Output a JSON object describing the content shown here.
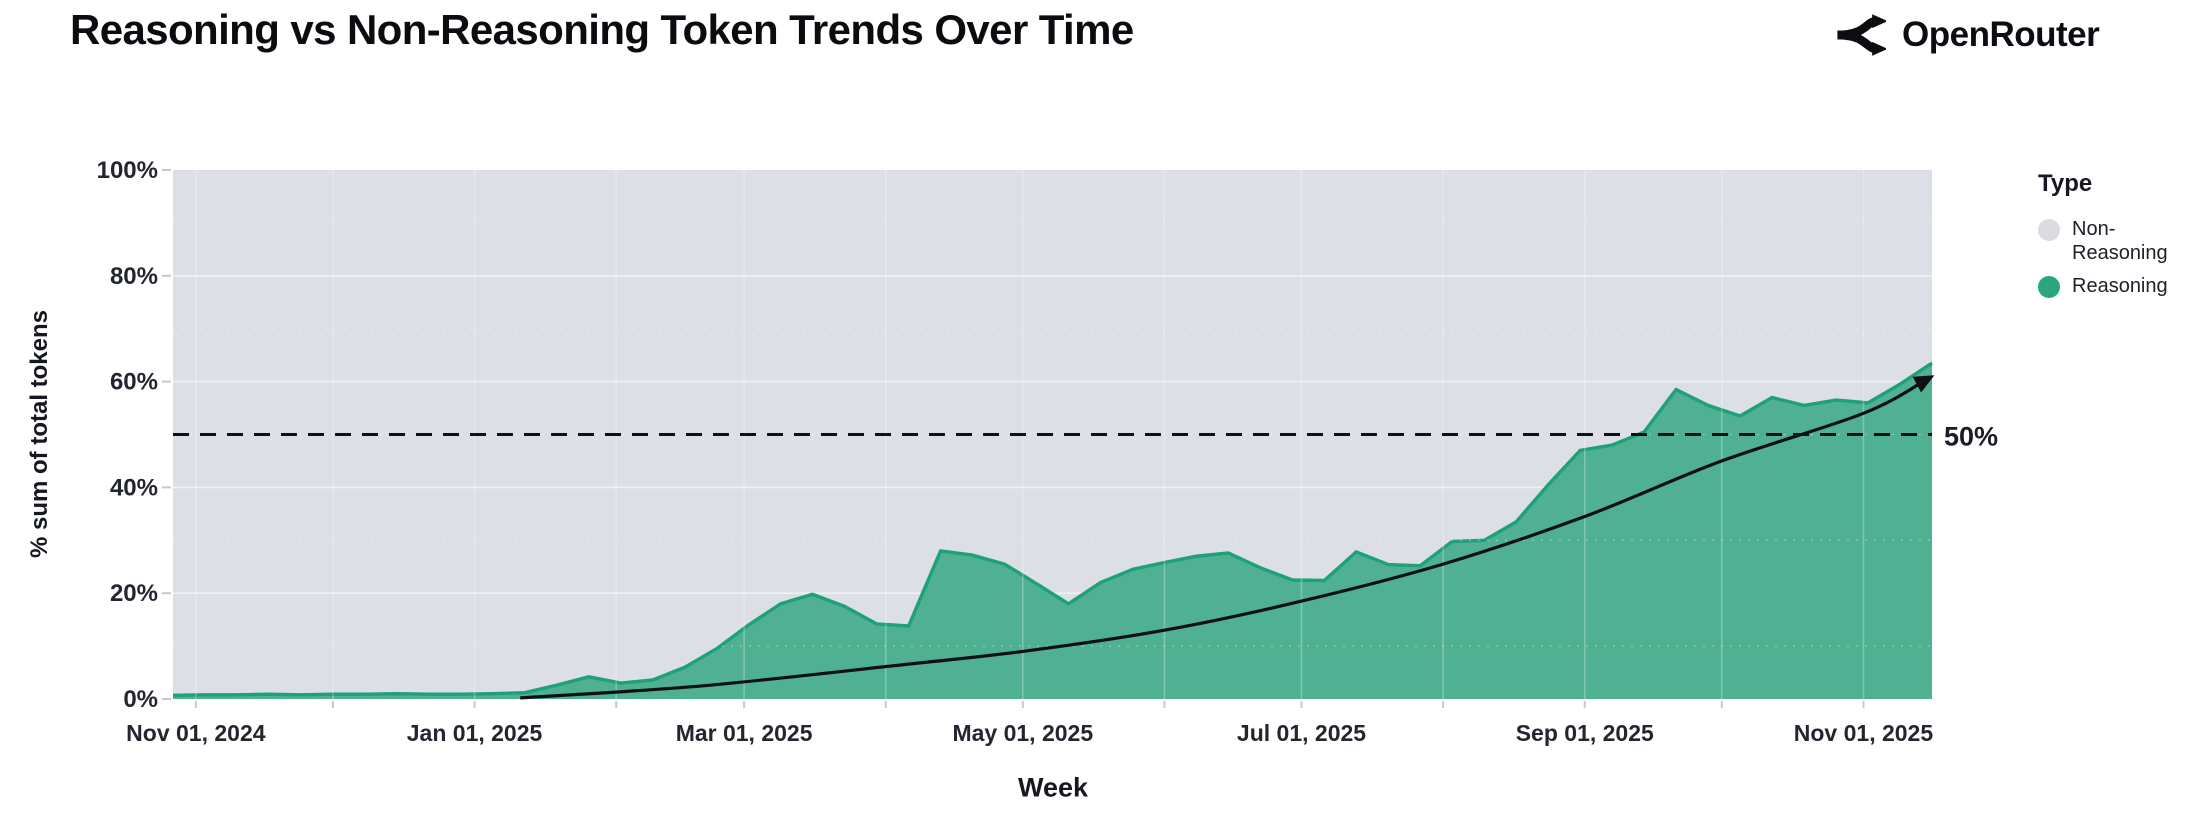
{
  "header": {
    "title": "Reasoning vs Non-Reasoning Token Trends Over Time",
    "brand": "OpenRouter"
  },
  "legend": {
    "title": "Type",
    "items": [
      {
        "label": "Non-Reasoning",
        "color": "#d9dbdf"
      },
      {
        "label": "Reasoning",
        "color": "#2aa57e"
      }
    ]
  },
  "chart_data": {
    "type": "area",
    "stacking": "percent",
    "title": "Reasoning vs Non-Reasoning Token Trends Over Time",
    "xlabel": "Week",
    "ylabel": "% sum of total tokens",
    "ylim": [
      0,
      100
    ],
    "grid": true,
    "legend_position": "right",
    "x_domain": [
      "2024-10-27",
      "2025-11-16"
    ],
    "y_ticks": [
      {
        "value": 0,
        "label": "0%"
      },
      {
        "value": 20,
        "label": "20%"
      },
      {
        "value": 40,
        "label": "40%"
      },
      {
        "value": 60,
        "label": "60%"
      },
      {
        "value": 80,
        "label": "80%"
      },
      {
        "value": 100,
        "label": "100%"
      }
    ],
    "x_ticks": [
      {
        "date": "2024-11-01",
        "label": "Nov 01, 2024"
      },
      {
        "date": "2024-12-01"
      },
      {
        "date": "2025-01-01",
        "label": "Jan 01, 2025"
      },
      {
        "date": "2025-02-01"
      },
      {
        "date": "2025-03-01",
        "label": "Mar 01, 2025"
      },
      {
        "date": "2025-04-01"
      },
      {
        "date": "2025-05-01",
        "label": "May 01, 2025"
      },
      {
        "date": "2025-06-01"
      },
      {
        "date": "2025-07-01",
        "label": "Jul 01, 2025"
      },
      {
        "date": "2025-08-01"
      },
      {
        "date": "2025-09-01",
        "label": "Sep 01, 2025"
      },
      {
        "date": "2025-10-01"
      },
      {
        "date": "2025-11-01",
        "label": "Nov 01, 2025"
      }
    ],
    "series": [
      {
        "name": "Reasoning",
        "format": [
          "week_start",
          "reasoning_pct_of_total_tokens"
        ],
        "weeks": [
          [
            "2024-10-27",
            0.7
          ],
          [
            "2024-11-03",
            0.8
          ],
          [
            "2024-11-10",
            0.8
          ],
          [
            "2024-11-17",
            0.9
          ],
          [
            "2024-11-24",
            0.8
          ],
          [
            "2024-12-01",
            0.9
          ],
          [
            "2024-12-08",
            0.9
          ],
          [
            "2024-12-15",
            1.0
          ],
          [
            "2024-12-22",
            0.9
          ],
          [
            "2024-12-29",
            0.9
          ],
          [
            "2025-01-05",
            1.0
          ],
          [
            "2025-01-12",
            1.2
          ],
          [
            "2025-01-19",
            2.6
          ],
          [
            "2025-01-26",
            4.2
          ],
          [
            "2025-02-02",
            3.0
          ],
          [
            "2025-02-09",
            3.6
          ],
          [
            "2025-02-16",
            6.0
          ],
          [
            "2025-02-23",
            9.5
          ],
          [
            "2025-03-02",
            14.0
          ],
          [
            "2025-03-09",
            18.0
          ],
          [
            "2025-03-16",
            19.8
          ],
          [
            "2025-03-23",
            17.5
          ],
          [
            "2025-03-30",
            14.2
          ],
          [
            "2025-04-06",
            13.8
          ],
          [
            "2025-04-13",
            28.0
          ],
          [
            "2025-04-20",
            27.2
          ],
          [
            "2025-04-27",
            25.5
          ],
          [
            "2025-05-04",
            21.8
          ],
          [
            "2025-05-11",
            18.0
          ],
          [
            "2025-05-18",
            22.0
          ],
          [
            "2025-05-25",
            24.5
          ],
          [
            "2025-06-01",
            25.8
          ],
          [
            "2025-06-08",
            27.0
          ],
          [
            "2025-06-15",
            27.6
          ],
          [
            "2025-06-22",
            24.8
          ],
          [
            "2025-06-29",
            22.5
          ],
          [
            "2025-07-06",
            22.4
          ],
          [
            "2025-07-13",
            27.8
          ],
          [
            "2025-07-20",
            25.4
          ],
          [
            "2025-07-27",
            25.2
          ],
          [
            "2025-08-03",
            29.8
          ],
          [
            "2025-08-10",
            30.0
          ],
          [
            "2025-08-17",
            33.5
          ],
          [
            "2025-08-24",
            40.5
          ],
          [
            "2025-08-31",
            47.0
          ],
          [
            "2025-09-07",
            48.0
          ],
          [
            "2025-09-14",
            50.5
          ],
          [
            "2025-09-21",
            58.5
          ],
          [
            "2025-09-28",
            55.5
          ],
          [
            "2025-10-05",
            53.5
          ],
          [
            "2025-10-12",
            57.0
          ],
          [
            "2025-10-19",
            55.5
          ],
          [
            "2025-10-26",
            56.5
          ],
          [
            "2025-11-02",
            56.0
          ],
          [
            "2025-11-09",
            59.5
          ],
          [
            "2025-11-16",
            63.5
          ]
        ]
      },
      {
        "name": "Non-Reasoning",
        "derived_from": "100 minus Reasoning (stacked to 100%)"
      }
    ],
    "annotations": {
      "reference_line": {
        "value": 50,
        "label": "50%",
        "style": "dashed"
      },
      "trend_arrow": {
        "description": "black exponential trend arrow over reasoning share",
        "points": [
          [
            "2025-01-11",
            0.2
          ],
          [
            "2025-02-20",
            2.5
          ],
          [
            "2025-04-05",
            6.5
          ],
          [
            "2025-05-01",
            9.0
          ],
          [
            "2025-06-01",
            13.0
          ],
          [
            "2025-07-01",
            18.5
          ],
          [
            "2025-08-01",
            25.5
          ],
          [
            "2025-09-01",
            34.5
          ],
          [
            "2025-10-01",
            45.0
          ],
          [
            "2025-11-01",
            54.0
          ],
          [
            "2025-11-15",
            60.5
          ]
        ]
      }
    },
    "colors": {
      "reasoning_fill": "#4fb192",
      "reasoning_stroke": "#1ea079",
      "non_reasoning_fill": "#dcdfe6",
      "grid": "#ffffff",
      "annotation": "#0e1014",
      "axis_tick": "#c6c9d0"
    }
  }
}
